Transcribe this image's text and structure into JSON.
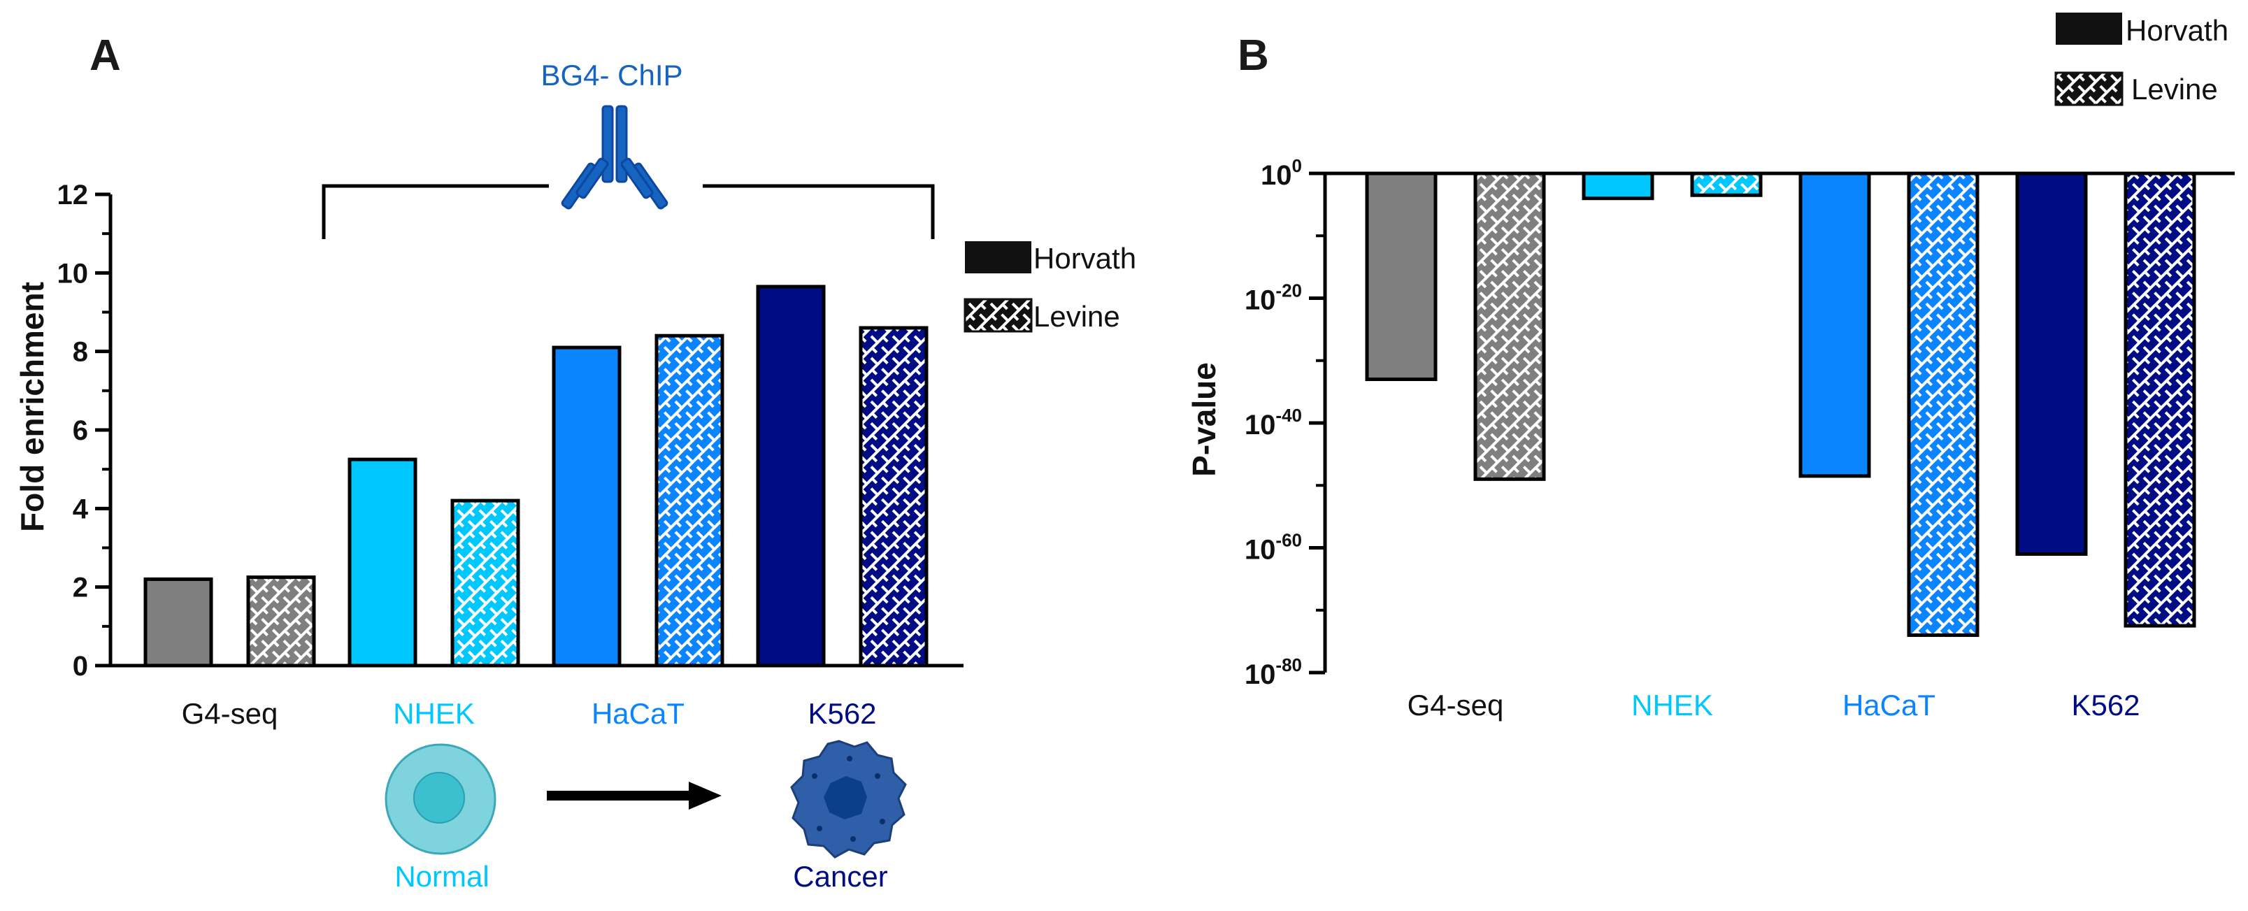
{
  "colors": {
    "g4seq": "#7f7f7f",
    "nhek": "#00c8ff",
    "hacat": "#0a84ff",
    "k562": "#000c84",
    "bg4": "#1565c0",
    "cell_normal_outer": "#7fd3dd",
    "cell_normal_inner": "#3cbfcf",
    "cell_cancer": "#2f5fa8",
    "cell_cancer_core": "#0b3f8a"
  },
  "chart_data": [
    {
      "panel": "A",
      "type": "bar",
      "title": "",
      "xlabel": "",
      "ylabel": "Fold enrichment",
      "ylim": [
        0,
        12
      ],
      "yticks": [
        "0",
        "2",
        "4",
        "6",
        "8",
        "10",
        "12"
      ],
      "categories": [
        "G4-seq",
        "NHEK",
        "HaCaT",
        "K562"
      ],
      "series": [
        {
          "name": "Horvath",
          "pattern": "solid",
          "values": [
            2.2,
            5.25,
            8.1,
            9.65
          ]
        },
        {
          "name": "Levine",
          "pattern": "hatched",
          "values": [
            2.25,
            4.2,
            8.4,
            8.6
          ]
        }
      ],
      "legend": [
        "Horvath",
        "Levine"
      ],
      "annotations": {
        "bracket_label": "BG4- ChIP",
        "normal_label": "Normal",
        "cancer_label": "Cancer"
      }
    },
    {
      "panel": "B",
      "type": "bar",
      "title": "",
      "xlabel": "",
      "ylabel": "P-value",
      "yscale": "log10",
      "ylim_exponent": [
        -80,
        0
      ],
      "yticks": [
        {
          "base": "10",
          "exp": "0"
        },
        {
          "base": "10",
          "exp": "-20"
        },
        {
          "base": "10",
          "exp": "-40"
        },
        {
          "base": "10",
          "exp": "-60"
        },
        {
          "base": "10",
          "exp": "-80"
        }
      ],
      "categories": [
        "G4-seq",
        "NHEK",
        "HaCaT",
        "K562"
      ],
      "series": [
        {
          "name": "Horvath",
          "pattern": "solid",
          "log10_values": [
            -33,
            -4,
            -48.5,
            -61
          ]
        },
        {
          "name": "Levine",
          "pattern": "hatched",
          "log10_values": [
            -49,
            -3.5,
            -74,
            -72.5
          ]
        }
      ],
      "legend": [
        "Horvath",
        "Levine"
      ]
    }
  ]
}
